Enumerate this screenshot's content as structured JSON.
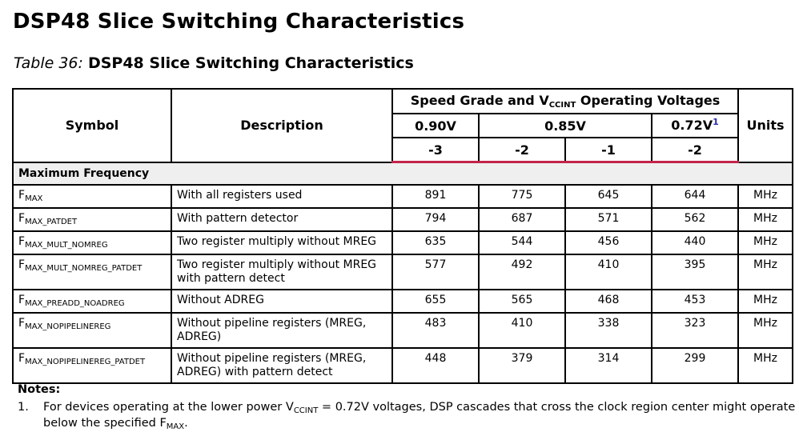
{
  "heading": "DSP48 Slice Switching Characteristics",
  "caption": {
    "number": "Table 36:",
    "title": "DSP48 Slice Switching Characteristics"
  },
  "header": {
    "symbol": "Symbol",
    "description": "Description",
    "speed_group": {
      "prefix": "Speed Grade and V",
      "sub": "CCINT",
      "suffix": " Operating Voltages"
    },
    "units": "Units",
    "voltages": {
      "v1": "0.90V",
      "v2": "0.85V",
      "v3": "0.72V",
      "v3_note": "1"
    },
    "grades": [
      "-3",
      "-2",
      "-1",
      "-2"
    ]
  },
  "section": "Maximum Frequency",
  "rows": [
    {
      "symbol_main": "F",
      "symbol_sub": "MAX",
      "description": "With all registers used",
      "values": [
        "891",
        "775",
        "645",
        "644"
      ],
      "unit": "MHz"
    },
    {
      "symbol_main": "F",
      "symbol_sub": "MAX_PATDET",
      "description": "With pattern detector",
      "values": [
        "794",
        "687",
        "571",
        "562"
      ],
      "unit": "MHz"
    },
    {
      "symbol_main": "F",
      "symbol_sub": "MAX_MULT_NOMREG",
      "description": "Two register multiply without MREG",
      "values": [
        "635",
        "544",
        "456",
        "440"
      ],
      "unit": "MHz"
    },
    {
      "symbol_main": "F",
      "symbol_sub": "MAX_MULT_NOMREG_PATDET",
      "description": "Two register multiply without MREG with pattern detect",
      "values": [
        "577",
        "492",
        "410",
        "395"
      ],
      "unit": "MHz"
    },
    {
      "symbol_main": "F",
      "symbol_sub": "MAX_PREADD_NOADREG",
      "description": "Without ADREG",
      "values": [
        "655",
        "565",
        "468",
        "453"
      ],
      "unit": "MHz"
    },
    {
      "symbol_main": "F",
      "symbol_sub": "MAX_NOPIPELINEREG",
      "description": "Without pipeline registers (MREG, ADREG)",
      "values": [
        "483",
        "410",
        "338",
        "323"
      ],
      "unit": "MHz"
    },
    {
      "symbol_main": "F",
      "symbol_sub": "MAX_NOPIPELINEREG_PATDET",
      "description": "Without pipeline registers (MREG, ADREG) with pattern detect",
      "values": [
        "448",
        "379",
        "314",
        "299"
      ],
      "unit": "MHz"
    }
  ],
  "notes": {
    "title": "Notes:",
    "items": [
      {
        "number": "1.",
        "text_before": "For devices operating at the lower power V",
        "sub1": "CCINT",
        "text_middle": " = 0.72V voltages, DSP cascades that cross the clock region center might operate below the specified F",
        "sub2": "MAX",
        "text_after": "."
      }
    ]
  }
}
